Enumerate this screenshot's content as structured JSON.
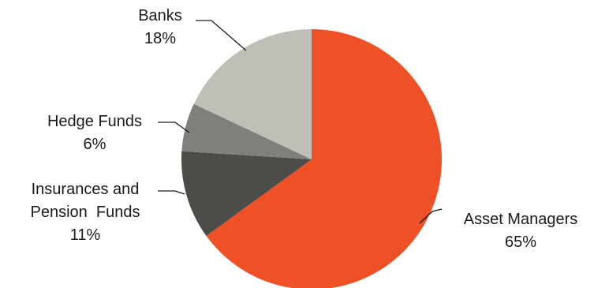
{
  "chart_data": {
    "type": "pie",
    "title": "",
    "start": "12 o'clock, clockwise",
    "slices": [
      {
        "name": "Asset Managers",
        "value": 65,
        "label": "65%",
        "color": "#ee5125"
      },
      {
        "name": "Insurances and Pension Funds",
        "name_lines": [
          "Insurances and",
          "Pension  Funds"
        ],
        "value": 11,
        "label": "11%",
        "color": "#4c4d48"
      },
      {
        "name": "Hedge Funds",
        "value": 6,
        "label": "6%",
        "color": "#7f807b"
      },
      {
        "name": "Banks",
        "value": 18,
        "label": "18%",
        "color": "#bfbeb7"
      }
    ]
  }
}
